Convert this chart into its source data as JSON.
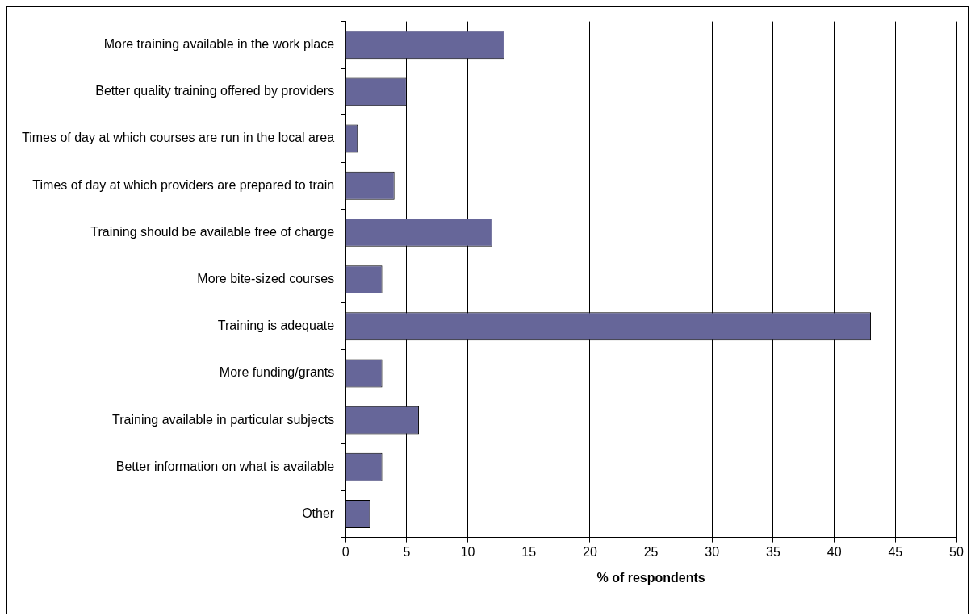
{
  "chart_data": {
    "type": "bar",
    "orientation": "horizontal",
    "xlabel": "% of respondents",
    "categories": [
      "More training available in the work place",
      "Better quality training offered by providers",
      "Times of day at which courses are run in the local area",
      "Times of day at which providers are prepared to train",
      "Training should be available free of charge",
      "More bite-sized courses",
      "Training is adequate",
      "More funding/grants",
      "Training available in particular subjects",
      "Better information on what is available",
      "Other"
    ],
    "values": [
      13,
      5,
      1,
      4,
      12,
      3,
      43,
      3,
      6,
      3,
      2
    ],
    "color": "#666699",
    "xlim": [
      0,
      50
    ],
    "xticks": [
      0,
      5,
      10,
      15,
      20,
      25,
      30,
      35,
      40,
      45,
      50
    ],
    "grid": "x",
    "legend": false
  }
}
